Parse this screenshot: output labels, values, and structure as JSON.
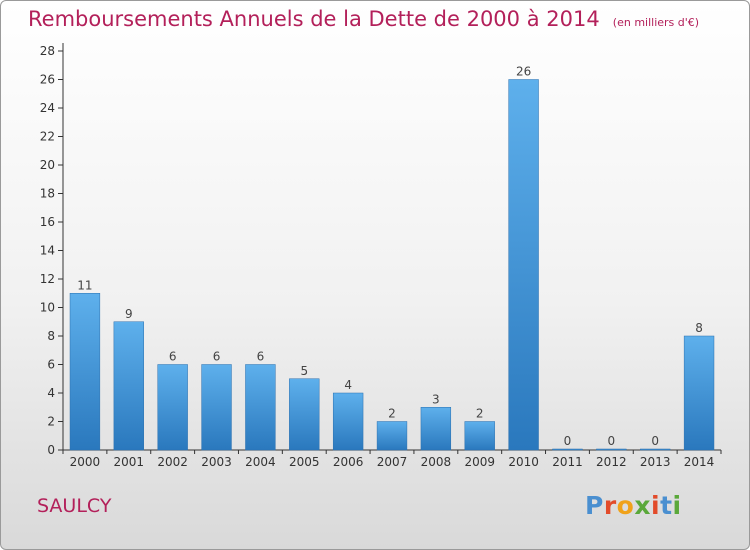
{
  "title": "Remboursements Annuels de la Dette de 2000 à 2014",
  "unit_label": "(en milliers d'€)",
  "commune": "SAULCY",
  "logo": {
    "text": "Proxiti",
    "colors": [
      "#4a8fd0",
      "#e24b2a",
      "#f0a21a",
      "#5aa83a",
      "#e24b2a",
      "#4a8fd0",
      "#5aa83a"
    ]
  },
  "chart_data": {
    "type": "bar",
    "categories": [
      "2000",
      "2001",
      "2002",
      "2003",
      "2004",
      "2005",
      "2006",
      "2007",
      "2008",
      "2009",
      "2010",
      "2011",
      "2012",
      "2013",
      "2014"
    ],
    "values": [
      11,
      9,
      6,
      6,
      6,
      5,
      4,
      2,
      3,
      2,
      26,
      0,
      0,
      0,
      8
    ],
    "ylim": [
      0,
      28
    ],
    "yticks": [
      0,
      2,
      4,
      6,
      8,
      10,
      12,
      14,
      16,
      18,
      20,
      22,
      24,
      26,
      28
    ],
    "grid": false,
    "bar_color": "#3d93d6",
    "title": "Remboursements Annuels de la Dette de 2000 à 2014"
  }
}
